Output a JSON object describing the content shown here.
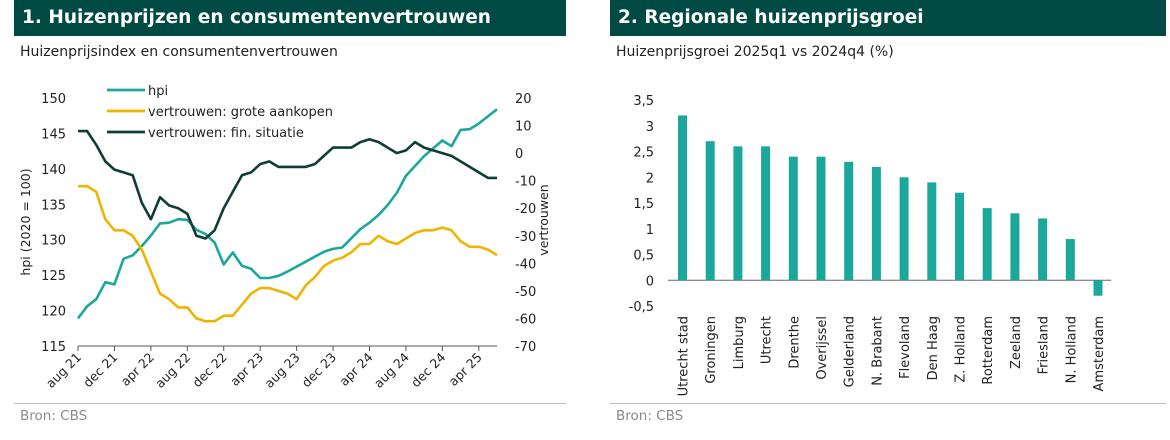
{
  "panel1": {
    "title": "1. Huizenprijzen en consumentenvertrouwen",
    "subtitle": "Huizenprijsindex en consumentenvertrouwen",
    "source": "Bron: CBS"
  },
  "panel2": {
    "title": "2. Regionale huizenprijsgroei",
    "subtitle": "Huizenprijsgroei 2025q1 vs 2024q4 (%)",
    "source": "Bron: CBS"
  },
  "colors": {
    "title_bg": "#004a44",
    "hpi": "#1ba89a",
    "grote": "#f0b400",
    "fin": "#0f3d36",
    "bar": "#1ba89a"
  },
  "chart_data": [
    {
      "type": "line",
      "title": "",
      "ylabel": "hpi (2020 = 100)",
      "y2label": "vertrouwen",
      "ylim": [
        115,
        150
      ],
      "yticks": [
        115,
        120,
        125,
        130,
        135,
        140,
        145,
        150
      ],
      "y2lim": [
        -70,
        20
      ],
      "y2ticks": [
        -70,
        -60,
        -50,
        -40,
        -30,
        -20,
        -10,
        0,
        10,
        20
      ],
      "x_ticks": [
        "aug 21",
        "dec 21",
        "apr 22",
        "aug 22",
        "dec 22",
        "apr 23",
        "aug 23",
        "dec 23",
        "apr 24",
        "aug 24",
        "dec 24",
        "apr 25"
      ],
      "x_range_months": [
        "2021-08",
        "2025-06"
      ],
      "series": [
        {
          "name": "hpi",
          "axis": "left",
          "values": [
            118.9,
            120.6,
            121.6,
            124.0,
            123.7,
            127.3,
            127.8,
            129.1,
            130.6,
            132.3,
            132.4,
            132.9,
            132.8,
            131.4,
            130.8,
            129.6,
            126.5,
            128.2,
            126.3,
            125.9,
            124.6,
            124.6,
            124.9,
            125.5,
            126.2,
            126.9,
            127.6,
            128.3,
            128.7,
            128.9,
            130.2,
            131.5,
            132.4,
            133.5,
            134.9,
            136.6,
            139.0,
            140.4,
            141.8,
            142.9,
            144.0,
            143.2,
            145.5,
            145.6,
            146.4,
            147.4,
            148.4
          ]
        },
        {
          "name": "vertrouwen: grote aankopen",
          "axis": "right",
          "values": [
            -12,
            -12,
            -14,
            -24,
            -28,
            -28,
            -30,
            -35,
            -43,
            -51,
            -53,
            -56,
            -56,
            -60,
            -61,
            -61,
            -59,
            -59,
            -55,
            -51,
            -49,
            -49,
            -50,
            -51,
            -53,
            -48,
            -45,
            -41,
            -39,
            -38,
            -36,
            -33,
            -33,
            -30,
            -32,
            -33,
            -31,
            -29,
            -28,
            -28,
            -27,
            -28,
            -32,
            -34,
            -34,
            -35,
            -37
          ]
        },
        {
          "name": "vertrouwen: fin. situatie",
          "axis": "right",
          "values": [
            8,
            8,
            3,
            -3,
            -6,
            -7,
            -8,
            -18,
            -24,
            -16,
            -19,
            -20,
            -22,
            -30,
            -31,
            -28,
            -20,
            -14,
            -8,
            -7,
            -4,
            -3,
            -5,
            -5,
            -5,
            -5,
            -4,
            -1,
            2,
            2,
            2,
            4,
            5,
            4,
            2,
            0,
            1,
            4,
            2,
            1,
            0,
            -1,
            -3,
            -5,
            -7,
            -9,
            -9
          ]
        }
      ],
      "legend_position": "top-left"
    },
    {
      "type": "bar",
      "title": "",
      "categories": [
        "Utrecht stad",
        "Groningen",
        "Limburg",
        "Utrecht",
        "Drenthe",
        "Overijssel",
        "Gelderland",
        "N. Brabant",
        "Flevoland",
        "Den Haag",
        "Z. Holland",
        "Rotterdam",
        "Zeeland",
        "Friesland",
        "N. Holland",
        "Amsterdam"
      ],
      "values": [
        3.2,
        2.7,
        2.6,
        2.6,
        2.4,
        2.4,
        2.3,
        2.2,
        2.0,
        1.9,
        1.7,
        1.4,
        1.3,
        1.2,
        0.8,
        -0.3
      ],
      "ylim": [
        -0.5,
        3.5
      ],
      "yticks": [
        "3,5",
        "3",
        "2,5",
        "2",
        "1,5",
        "1",
        "0,5",
        "0",
        "-0,5"
      ],
      "ytick_values": [
        3.5,
        3,
        2.5,
        2,
        1.5,
        1,
        0.5,
        0,
        -0.5
      ]
    }
  ]
}
